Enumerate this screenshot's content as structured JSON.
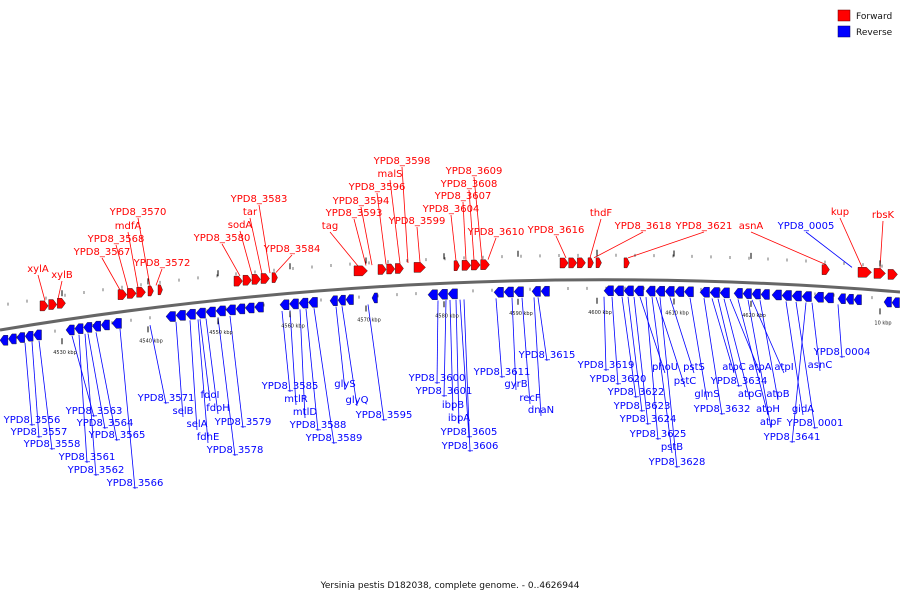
{
  "caption": "Yersinia pestis D182038, complete genome. - 0..4626944",
  "legend": [
    {
      "label": "Forward",
      "color": "#ff0000"
    },
    {
      "label": "Reverse",
      "color": "#0000ff"
    }
  ],
  "colors": {
    "forward": "#ff0000",
    "reverse": "#0000ff",
    "backbone": "#666666"
  },
  "ticks": [
    "4530 kbp",
    "4540 kbp",
    "4550 kbp",
    "4560 kbp",
    "4570 kbp",
    "4580 kbp",
    "4590 kbp",
    "4600 kbp",
    "4610 kbp",
    "4620 kbp",
    "10 kbp"
  ],
  "forward_genes": [
    "xylA",
    "xylB",
    "YPD8_3567",
    "YPD8_3568",
    "mdfA",
    "YPD8_3570",
    "YPD8_3572",
    "YPD8_3580",
    "sodA",
    "tar",
    "YPD8_3583",
    "YPD8_3584",
    "tag",
    "YPD8_3593",
    "YPD8_3594",
    "YPD8_3596",
    "malS",
    "YPD8_3598",
    "YPD8_3599",
    "YPD8_3604",
    "YPD8_3607",
    "YPD8_3608",
    "YPD8_3609",
    "YPD8_3610",
    "YPD8_3616",
    "thdF",
    "YPD8_3618",
    "YPD8_3621",
    "asnA",
    "kup",
    "rbsK"
  ],
  "reverse_genes_upper": [
    "YPD8_0005"
  ],
  "reverse_genes": [
    "YPD8_3556",
    "YPD8_3557",
    "YPD8_3558",
    "YPD8_3561",
    "YPD8_3562",
    "YPD8_3563",
    "YPD8_3564",
    "YPD8_3565",
    "YPD8_3566",
    "YPD8_3571",
    "selB",
    "selA",
    "fdhE",
    "fdoI",
    "fdoH",
    "YPD8_3578",
    "YPD8_3579",
    "YPD8_3585",
    "mtlR",
    "mtlD",
    "YPD8_3588",
    "YPD8_3589",
    "glyS",
    "glyQ",
    "YPD8_3595",
    "YPD8_3600",
    "YPD8_3601",
    "ibpB",
    "ibpA",
    "YPD8_3605",
    "YPD8_3606",
    "YPD8_3611",
    "gyrB",
    "recF",
    "dnaN",
    "YPD8_3615",
    "YPD8_3619",
    "YPD8_3620",
    "YPD8_3622",
    "YPD8_3623",
    "YPD8_3624",
    "phoU",
    "YPD8_3625",
    "pstB",
    "YPD8_3628",
    "pstC",
    "pstS",
    "glmS",
    "YPD8_3632",
    "atpC",
    "YPD8_3634",
    "atpG",
    "atpA",
    "atpH",
    "atpF",
    "atpI",
    "atpB",
    "gidA",
    "YPD8_0001",
    "YPD8_3641",
    "asnC",
    "YPD8_0004"
  ]
}
